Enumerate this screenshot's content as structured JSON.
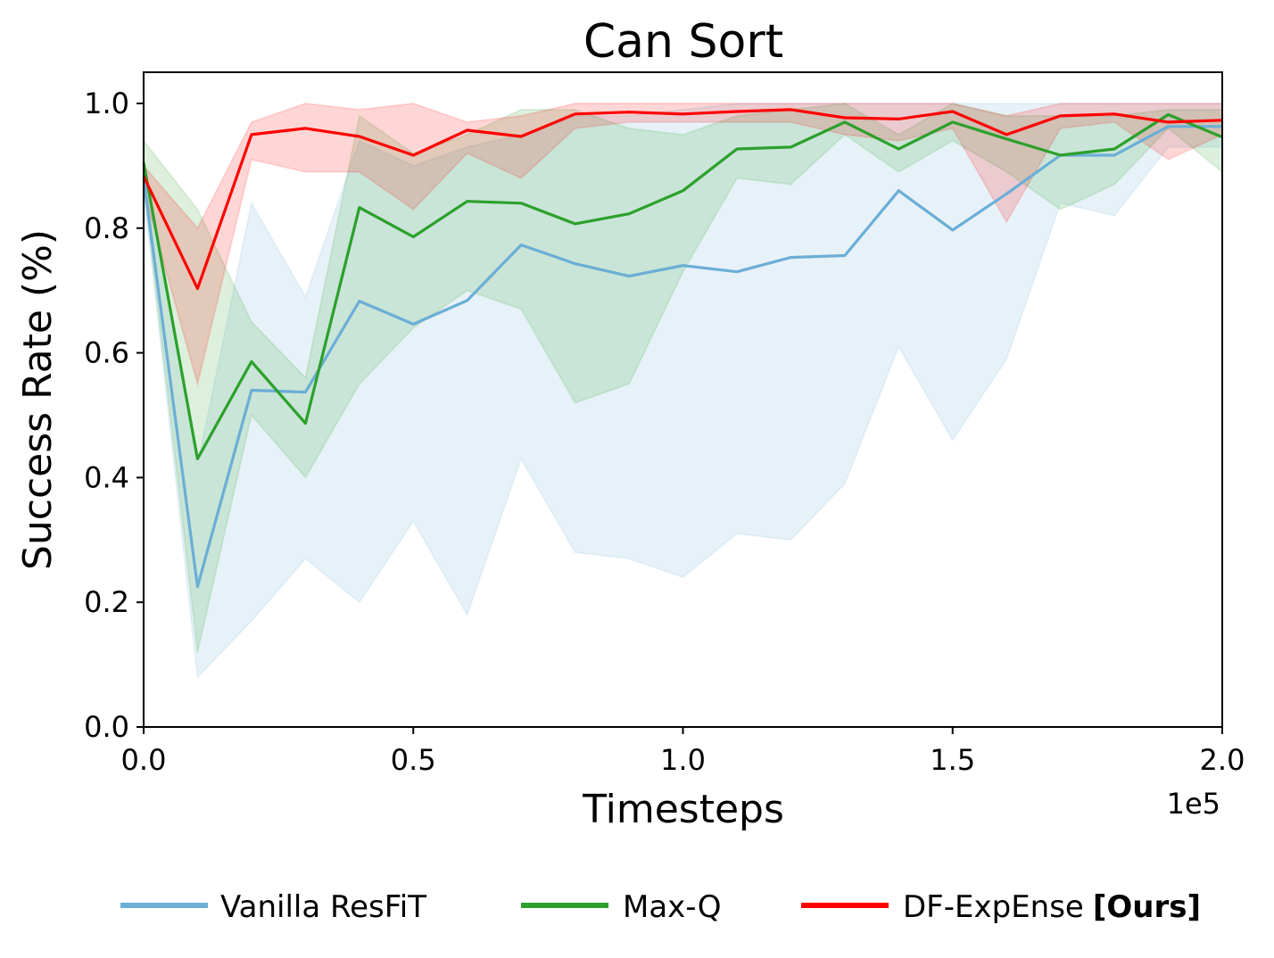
{
  "chart_data": {
    "type": "line",
    "title": "Can Sort",
    "xlabel": "Timesteps",
    "ylabel": "Success Rate (%)",
    "x_offset_label": "1e5",
    "xlim": [
      0,
      2.0
    ],
    "ylim": [
      0,
      1.05
    ],
    "x_ticks": [
      "0.0",
      "0.5",
      "1.0",
      "1.5",
      "2.0"
    ],
    "y_ticks": [
      "0.0",
      "0.2",
      "0.4",
      "0.6",
      "0.8",
      "1.0"
    ],
    "grid": false,
    "legend_position": "bottom",
    "x": [
      0,
      0.1,
      0.2,
      0.3,
      0.4,
      0.5,
      0.6,
      0.7,
      0.8,
      0.9,
      1.0,
      1.1,
      1.2,
      1.3,
      1.4,
      1.5,
      1.6,
      1.7,
      1.8,
      1.9,
      2.0
    ],
    "series": [
      {
        "name": "Vanilla ResFiT",
        "color": "#6baed6",
        "values": [
          0.88,
          0.225,
          0.54,
          0.537,
          0.683,
          0.646,
          0.684,
          0.773,
          0.743,
          0.723,
          0.74,
          0.73,
          0.753,
          0.756,
          0.86,
          0.797,
          0.855,
          0.917,
          0.917,
          0.963,
          0.963
        ],
        "lower": [
          0.86,
          0.08,
          0.17,
          0.27,
          0.2,
          0.33,
          0.18,
          0.43,
          0.28,
          0.27,
          0.24,
          0.31,
          0.3,
          0.39,
          0.61,
          0.46,
          0.59,
          0.84,
          0.82,
          0.93,
          0.93
        ],
        "upper": [
          0.91,
          0.42,
          0.84,
          0.69,
          0.94,
          0.9,
          0.93,
          0.95,
          0.98,
          0.98,
          0.99,
          1.0,
          1.0,
          1.0,
          1.0,
          1.0,
          1.0,
          1.0,
          1.0,
          1.0,
          1.0
        ]
      },
      {
        "name": "Max-Q",
        "color": "#2ca02c",
        "values": [
          0.905,
          0.43,
          0.586,
          0.487,
          0.833,
          0.786,
          0.843,
          0.84,
          0.807,
          0.823,
          0.86,
          0.927,
          0.93,
          0.97,
          0.927,
          0.97,
          0.943,
          0.917,
          0.927,
          0.982,
          0.946
        ],
        "lower": [
          0.87,
          0.12,
          0.5,
          0.4,
          0.55,
          0.64,
          0.7,
          0.67,
          0.52,
          0.55,
          0.73,
          0.88,
          0.87,
          0.95,
          0.89,
          0.94,
          0.89,
          0.83,
          0.87,
          0.96,
          0.89
        ],
        "upper": [
          0.94,
          0.83,
          0.65,
          0.56,
          0.98,
          0.92,
          0.95,
          0.99,
          0.99,
          0.96,
          0.95,
          0.98,
          0.99,
          1.0,
          0.95,
          1.0,
          0.98,
          0.98,
          0.98,
          0.99,
          0.99
        ]
      },
      {
        "name": "DF-ExpEnse",
        "name_suffix": "[Ours]",
        "color": "#ff0000",
        "values": [
          0.883,
          0.703,
          0.95,
          0.96,
          0.947,
          0.917,
          0.957,
          0.947,
          0.983,
          0.986,
          0.983,
          0.987,
          0.99,
          0.977,
          0.975,
          0.987,
          0.95,
          0.98,
          0.983,
          0.97,
          0.973
        ],
        "lower": [
          0.86,
          0.55,
          0.91,
          0.89,
          0.89,
          0.83,
          0.92,
          0.88,
          0.96,
          0.97,
          0.97,
          0.97,
          0.97,
          0.95,
          0.94,
          0.96,
          0.81,
          0.96,
          0.97,
          0.91,
          0.95
        ],
        "upper": [
          0.9,
          0.8,
          0.97,
          1.0,
          0.99,
          1.0,
          0.97,
          0.98,
          1.0,
          1.0,
          1.0,
          1.0,
          1.0,
          1.0,
          1.0,
          1.0,
          0.98,
          1.0,
          1.0,
          1.0,
          1.0
        ]
      }
    ]
  }
}
